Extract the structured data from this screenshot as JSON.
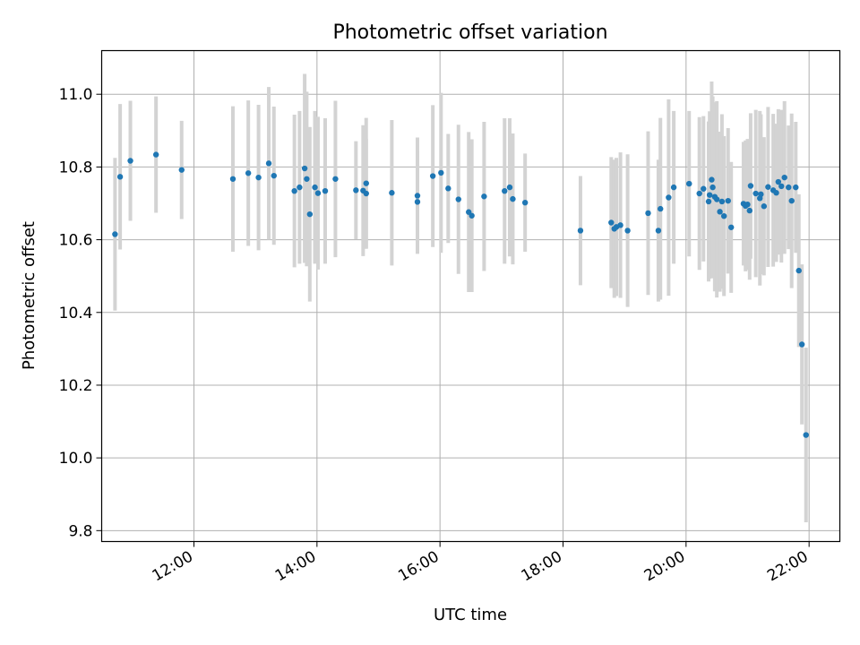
{
  "chart_data": {
    "type": "scatter",
    "title": "Photometric offset variation",
    "xlabel": "UTC time",
    "ylabel": "Photometric offset",
    "xlim": [
      "10:30",
      "22:30"
    ],
    "ylim": [
      9.77,
      11.12
    ],
    "xticks": [
      "12:00",
      "14:00",
      "16:00",
      "18:00",
      "20:00",
      "22:00"
    ],
    "yticks": [
      "9.8",
      "10.0",
      "10.2",
      "10.4",
      "10.6",
      "10.8",
      "11.0"
    ],
    "grid": true,
    "colors": {
      "marker": "#1f77b4",
      "errorbar": "#d3d3d3",
      "grid": "#b0b0b0"
    },
    "series": [
      {
        "x": [
          "10:43",
          "10:48",
          "10:58",
          "11:23",
          "11:48",
          "12:38",
          "12:53",
          "13:03",
          "13:13",
          "13:18",
          "13:38",
          "13:43",
          "13:48",
          "13:50",
          "13:53",
          "13:58",
          "14:01",
          "14:08",
          "14:18",
          "14:38",
          "14:45",
          "14:48",
          "14:48",
          "15:13",
          "15:38",
          "15:38",
          "15:53",
          "16:01",
          "16:08",
          "16:18",
          "16:28",
          "16:31",
          "16:43",
          "17:03",
          "17:08",
          "17:11",
          "17:23",
          "18:17",
          "18:47",
          "18:50",
          "18:52",
          "18:56",
          "19:03",
          "19:23",
          "19:33",
          "19:35",
          "19:43",
          "19:48",
          "20:03",
          "20:13",
          "20:17",
          "20:22",
          "20:23",
          "20:25",
          "20:26",
          "20:28",
          "20:30",
          "20:33",
          "20:35",
          "20:37",
          "20:41",
          "20:44",
          "20:56",
          "20:58",
          "21:00",
          "21:02",
          "21:03",
          "21:08",
          "21:12",
          "21:13",
          "21:16",
          "21:20",
          "21:25",
          "21:28",
          "21:30",
          "21:33",
          "21:36",
          "21:40",
          "21:43",
          "21:47",
          "21:50",
          "21:53",
          "21:57"
        ],
        "y": [
          10.615,
          10.773,
          10.817,
          10.834,
          10.792,
          10.767,
          10.783,
          10.771,
          10.81,
          10.776,
          10.734,
          10.744,
          10.796,
          10.767,
          10.67,
          10.744,
          10.728,
          10.734,
          10.767,
          10.736,
          10.735,
          10.755,
          10.727,
          10.729,
          10.721,
          10.704,
          10.775,
          10.784,
          10.741,
          10.711,
          10.676,
          10.666,
          10.719,
          10.734,
          10.744,
          10.712,
          10.702,
          10.625,
          10.647,
          10.63,
          10.635,
          10.64,
          10.625,
          10.673,
          10.625,
          10.685,
          10.716,
          10.744,
          10.754,
          10.727,
          10.74,
          10.705,
          10.723,
          10.765,
          10.744,
          10.718,
          10.711,
          10.677,
          10.705,
          10.665,
          10.707,
          10.634,
          10.699,
          10.693,
          10.697,
          10.68,
          10.748,
          10.727,
          10.714,
          10.725,
          10.692,
          10.745,
          10.736,
          10.729,
          10.759,
          10.747,
          10.771,
          10.744,
          10.707,
          10.744,
          10.515,
          10.312,
          10.063
        ],
        "err": [
          0.21,
          0.2,
          0.165,
          0.16,
          0.135,
          0.2,
          0.2,
          0.2,
          0.21,
          0.19,
          0.21,
          0.21,
          0.26,
          0.24,
          0.24,
          0.21,
          0.21,
          0.2,
          0.215,
          0.135,
          0.18,
          0.18,
          0.15,
          0.2,
          0.16,
          0.14,
          0.195,
          0.22,
          0.15,
          0.205,
          0.22,
          0.21,
          0.205,
          0.2,
          0.19,
          0.18,
          0.135,
          0.15,
          0.18,
          0.19,
          0.19,
          0.2,
          0.21,
          0.225,
          0.195,
          0.25,
          0.27,
          0.21,
          0.2,
          0.21,
          0.2,
          0.22,
          0.23,
          0.27,
          0.25,
          0.26,
          0.27,
          0.22,
          0.24,
          0.22,
          0.2,
          0.18,
          0.17,
          0.18,
          0.18,
          0.19,
          0.2,
          0.23,
          0.24,
          0.22,
          0.19,
          0.22,
          0.21,
          0.19,
          0.2,
          0.21,
          0.21,
          0.17,
          0.24,
          0.18,
          0.21,
          0.22,
          0.24
        ]
      }
    ]
  }
}
